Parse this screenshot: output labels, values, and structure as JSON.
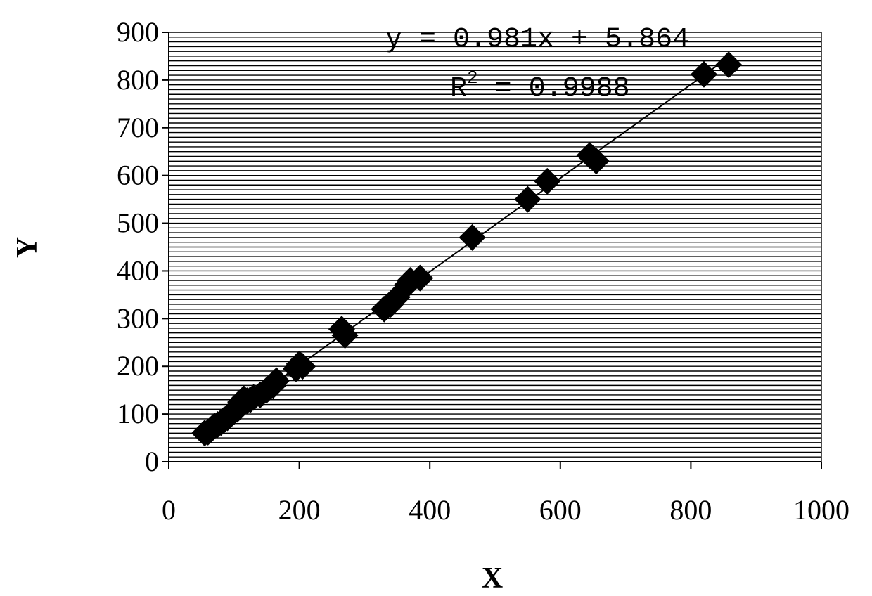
{
  "chart_data": {
    "type": "scatter",
    "title": "",
    "xlabel": "X",
    "ylabel": "Y",
    "xlim": [
      0,
      1000
    ],
    "ylim": [
      0,
      900
    ],
    "xticks": [
      0,
      200,
      400,
      600,
      800,
      1000
    ],
    "yticks": [
      0,
      100,
      200,
      300,
      400,
      500,
      600,
      700,
      800,
      900
    ],
    "grid": "horizontal",
    "marker": "diamond",
    "colors": {
      "marker": "#000000",
      "line": "#000000",
      "grid": "#000000"
    },
    "trendline": {
      "slope": 0.981,
      "intercept": 5.864,
      "equation_text": "y = 0.981x + 5.864",
      "r2_prefix": "R",
      "r2_exponent": "2",
      "r2_value_text": " = 0.9988"
    },
    "series": [
      {
        "points": [
          [
            55,
            60
          ],
          [
            60,
            62
          ],
          [
            65,
            68
          ],
          [
            70,
            75
          ],
          [
            75,
            78
          ],
          [
            80,
            82
          ],
          [
            85,
            88
          ],
          [
            90,
            92
          ],
          [
            95,
            100
          ],
          [
            100,
            105
          ],
          [
            105,
            110
          ],
          [
            110,
            125
          ],
          [
            115,
            132
          ],
          [
            120,
            128
          ],
          [
            125,
            130
          ],
          [
            130,
            135
          ],
          [
            140,
            140
          ],
          [
            150,
            150
          ],
          [
            160,
            160
          ],
          [
            165,
            170
          ],
          [
            195,
            195
          ],
          [
            200,
            205
          ],
          [
            205,
            200
          ],
          [
            265,
            278
          ],
          [
            270,
            265
          ],
          [
            330,
            320
          ],
          [
            340,
            330
          ],
          [
            350,
            345
          ],
          [
            365,
            370
          ],
          [
            370,
            380
          ],
          [
            385,
            385
          ],
          [
            465,
            470
          ],
          [
            550,
            550
          ],
          [
            580,
            588
          ],
          [
            645,
            642
          ],
          [
            655,
            630
          ],
          [
            820,
            812
          ],
          [
            858,
            832
          ]
        ]
      }
    ]
  }
}
